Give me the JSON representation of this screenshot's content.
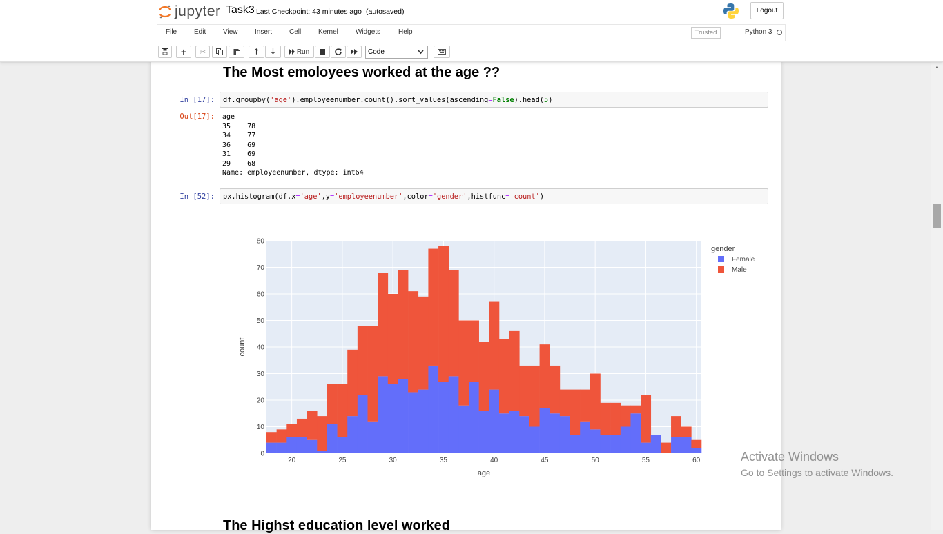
{
  "header": {
    "logo_text": "jupyter",
    "notebook_name": "Task3",
    "checkpoint": "Last Checkpoint: 43 minutes ago",
    "autosave": "(autosaved)",
    "logout_label": "Logout"
  },
  "menu": {
    "items": [
      "File",
      "Edit",
      "View",
      "Insert",
      "Cell",
      "Kernel",
      "Widgets",
      "Help"
    ],
    "trusted": "Trusted",
    "kernel": "Python 3"
  },
  "toolbar": {
    "run_label": "Run",
    "cell_type": "Code"
  },
  "cells": {
    "md1_heading": "The Most emoloyees worked at the age ??",
    "in17_prompt": "In [17]:",
    "out17_prompt": "Out[17]:",
    "in17_code": {
      "a": "df.groupby(",
      "b": "'age'",
      "c": ").employeenumber.count().sort_values(ascending",
      "d": "=",
      "e": "False",
      "f": ").head(",
      "g": "5",
      "h": ")"
    },
    "out17_text": "age\n35    78\n34    77\n36    69\n31    69\n29    68\nName: employeenumber, dtype: int64",
    "in52_prompt": "In [52]:",
    "in52_code": {
      "a": "px.histogram(df,x",
      "b": "=",
      "c": "'age'",
      "d": ",y",
      "e": "=",
      "f": "'employeenumber'",
      "g": ",color",
      "h": "=",
      "i": "'gender'",
      "j": ",histfunc",
      "k": "=",
      "l": "'count'",
      "m": ")"
    },
    "md2_heading": "The Highst education level worked"
  },
  "watermark": {
    "line1": "Activate Windows",
    "line2": "Go to Settings to activate Windows."
  },
  "colors": {
    "female": "#636efa",
    "male": "#ef553b",
    "plot_bg": "#e5ecf6"
  },
  "chart_data": {
    "type": "bar",
    "barmode": "stack",
    "xlabel": "age",
    "ylabel": "count",
    "ylim": [
      0,
      80
    ],
    "y_ticks": [
      0,
      10,
      20,
      30,
      40,
      50,
      60,
      70,
      80
    ],
    "x_ticks": [
      20,
      25,
      30,
      35,
      40,
      45,
      50,
      55,
      60
    ],
    "xlim": [
      17.5,
      60.5
    ],
    "legend_title": "gender",
    "legend_position": "top-right",
    "x": [
      18,
      19,
      20,
      21,
      22,
      23,
      24,
      25,
      26,
      27,
      28,
      29,
      30,
      31,
      32,
      33,
      34,
      35,
      36,
      37,
      38,
      39,
      40,
      41,
      42,
      43,
      44,
      45,
      46,
      47,
      48,
      49,
      50,
      51,
      52,
      53,
      54,
      55,
      56,
      57,
      58,
      59,
      60
    ],
    "series": [
      {
        "name": "Female",
        "values": [
          4,
          4,
          6,
          6,
          5,
          1,
          11,
          6,
          14,
          22,
          12,
          29,
          26,
          28,
          23,
          24,
          33,
          27,
          29,
          18,
          27,
          16,
          24,
          15,
          16,
          14,
          10,
          17,
          15,
          14,
          7,
          12,
          9,
          7,
          7,
          10,
          15,
          4,
          7,
          0,
          6,
          6,
          2
        ]
      },
      {
        "name": "Male",
        "values": [
          4,
          5,
          5,
          7,
          11,
          13,
          15,
          20,
          25,
          26,
          36,
          39,
          34,
          41,
          38,
          35,
          44,
          51,
          40,
          32,
          23,
          26,
          33,
          28,
          30,
          19,
          23,
          24,
          18,
          10,
          17,
          12,
          21,
          12,
          12,
          8,
          3,
          18,
          0,
          4,
          8,
          4,
          3
        ]
      }
    ]
  }
}
